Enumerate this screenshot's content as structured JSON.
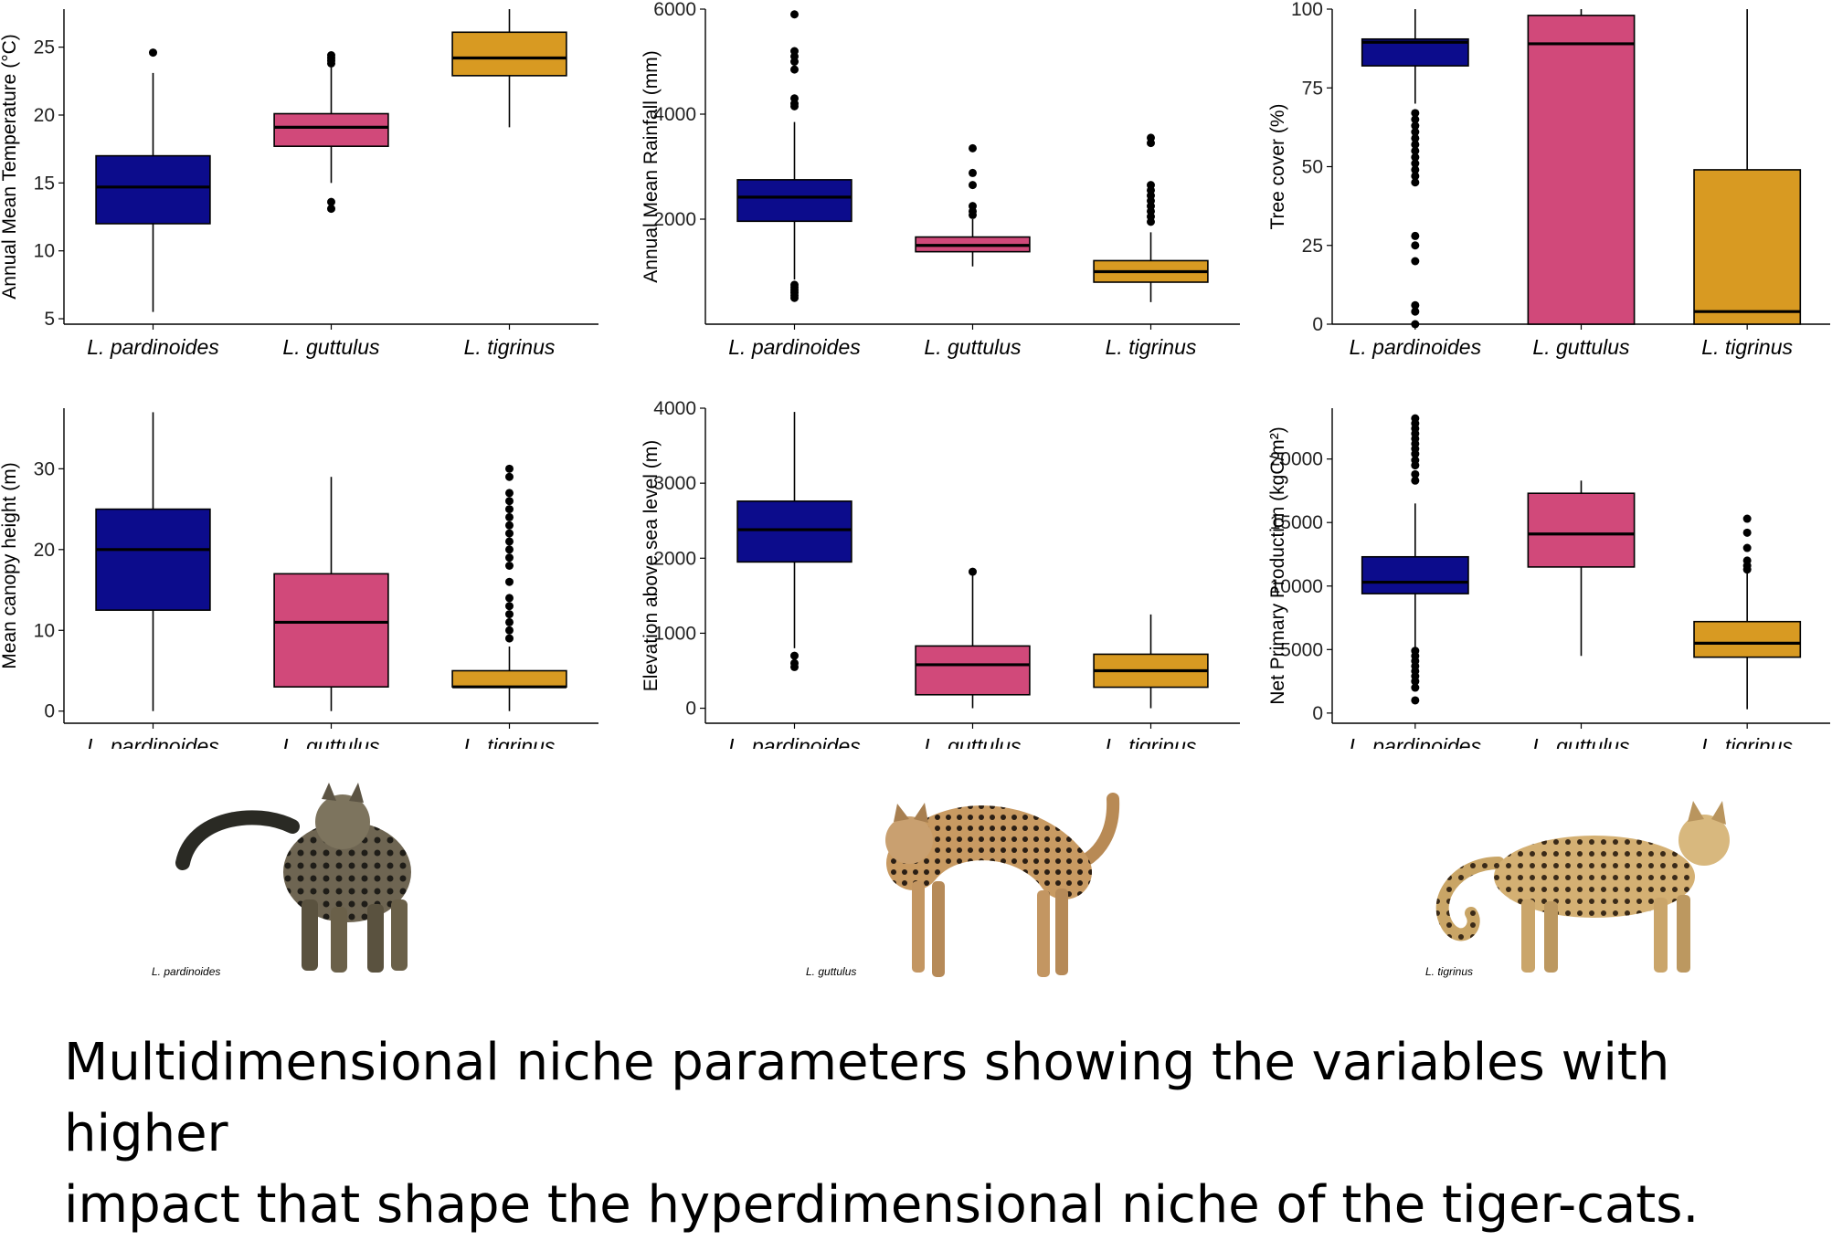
{
  "colors": {
    "L. pardinoides": "#0c0c8c",
    "L. guttulus": "#d1497a",
    "L. tigrinus": "#d89a22"
  },
  "chart_data": [
    {
      "type": "box",
      "categories": [
        "L. pardinoides",
        "L. guttulus",
        "L. tigrinus"
      ],
      "ylabel": "Annual Mean Temperature (°C)",
      "ylim": [
        4.6,
        27.8
      ],
      "yticks": [
        5,
        10,
        15,
        20,
        25
      ],
      "boxes": [
        {
          "min": 5.5,
          "q1": 12.0,
          "median": 14.7,
          "q3": 17.0,
          "max": 23.1,
          "outliers": [
            24.6
          ]
        },
        {
          "min": 15.0,
          "q1": 17.7,
          "median": 19.1,
          "q3": 20.1,
          "max": 23.5,
          "outliers": [
            23.8,
            24.0,
            24.2,
            24.4,
            13.6,
            13.1
          ]
        },
        {
          "min": 19.1,
          "q1": 22.9,
          "median": 24.2,
          "q3": 26.1,
          "max": 27.8,
          "outliers": []
        }
      ]
    },
    {
      "type": "box",
      "categories": [
        "L. pardinoides",
        "L. guttulus",
        "L. tigrinus"
      ],
      "ylabel": "Annual Mean Rainfall (mm)",
      "ylim": [
        0,
        6000
      ],
      "yticks": [
        2000,
        4000,
        6000
      ],
      "boxes": [
        {
          "min": 850,
          "q1": 1960,
          "median": 2420,
          "q3": 2750,
          "max": 3850,
          "outliers": [
            5900,
            5200,
            5100,
            5000,
            4850,
            4300,
            4200,
            4150,
            750,
            700,
            650,
            600,
            550,
            500
          ]
        },
        {
          "min": 1100,
          "q1": 1380,
          "median": 1500,
          "q3": 1660,
          "max": 2000,
          "outliers": [
            3350,
            2880,
            2650,
            2250,
            2150,
            2080
          ]
        },
        {
          "min": 420,
          "q1": 800,
          "median": 1000,
          "q3": 1210,
          "max": 1750,
          "outliers": [
            3550,
            3450,
            2650,
            2550,
            2450,
            2350,
            2250,
            2150,
            2050,
            1950
          ]
        }
      ]
    },
    {
      "type": "box",
      "categories": [
        "L. pardinoides",
        "L. guttulus",
        "L. tigrinus"
      ],
      "ylabel": "Tree cover (%)",
      "ylim": [
        0,
        100
      ],
      "yticks": [
        0,
        25,
        50,
        75,
        100
      ],
      "boxes": [
        {
          "min": 70,
          "q1": 82,
          "median": 89.5,
          "q3": 90.5,
          "max": 100,
          "outliers": [
            67,
            65,
            63,
            61,
            59,
            57,
            55,
            53,
            51,
            49,
            47,
            45,
            28,
            25,
            20,
            6,
            4,
            0
          ]
        },
        {
          "min": 0,
          "q1": 0,
          "median": 89,
          "q3": 98,
          "max": 100,
          "outliers": []
        },
        {
          "min": 0,
          "q1": 0,
          "median": 4,
          "q3": 49,
          "max": 100,
          "outliers": []
        }
      ]
    },
    {
      "type": "box",
      "categories": [
        "L. pardinoides",
        "L. guttulus",
        "L. tigrinus"
      ],
      "ylabel": "Mean canopy height (m)",
      "ylim": [
        -1.5,
        37.5
      ],
      "yticks": [
        0,
        10,
        20,
        30
      ],
      "boxes": [
        {
          "min": 0,
          "q1": 12.5,
          "median": 20,
          "q3": 25,
          "max": 37,
          "outliers": []
        },
        {
          "min": 0,
          "q1": 3,
          "median": 11,
          "q3": 17,
          "max": 29,
          "outliers": []
        },
        {
          "min": 0,
          "q1": 3,
          "median": 3,
          "q3": 5,
          "max": 8,
          "outliers": [
            30,
            29,
            27,
            26,
            25,
            24,
            23,
            22,
            21,
            20,
            19,
            18,
            16,
            14,
            13,
            12,
            11,
            10,
            9
          ]
        }
      ]
    },
    {
      "type": "box",
      "categories": [
        "L. pardinoides",
        "L. guttulus",
        "L. tigrinus"
      ],
      "ylabel": "Elevation above sea level (m)",
      "ylim": [
        -200,
        4000
      ],
      "yticks": [
        0,
        1000,
        2000,
        3000,
        4000
      ],
      "boxes": [
        {
          "min": 800,
          "q1": 1950,
          "median": 2380,
          "q3": 2760,
          "max": 3950,
          "outliers": [
            700,
            600,
            550
          ]
        },
        {
          "min": 0,
          "q1": 180,
          "median": 580,
          "q3": 830,
          "max": 1800,
          "outliers": [
            1820
          ]
        },
        {
          "min": 0,
          "q1": 280,
          "median": 500,
          "q3": 720,
          "max": 1250,
          "outliers": []
        }
      ]
    },
    {
      "type": "box",
      "categories": [
        "L. pardinoides",
        "L. guttulus",
        "L. tigrinus"
      ],
      "ylabel": "Net Primary Production (kgC/m²)",
      "ylim": [
        -800,
        24000
      ],
      "yticks": [
        0,
        5000,
        10000,
        15000,
        20000
      ],
      "boxes": [
        {
          "min": 5000,
          "q1": 9400,
          "median": 10300,
          "q3": 12300,
          "max": 16500,
          "outliers": [
            23200,
            22800,
            22400,
            22000,
            21600,
            21200,
            20800,
            20400,
            19900,
            19500,
            18800,
            18300,
            4900,
            4500,
            4100,
            3700,
            3300,
            2900,
            2500,
            2000,
            1000
          ]
        },
        {
          "min": 4500,
          "q1": 11500,
          "median": 14100,
          "q3": 17300,
          "max": 18300,
          "outliers": []
        },
        {
          "min": 300,
          "q1": 4400,
          "median": 5500,
          "q3": 7200,
          "max": 11000,
          "outliers": [
            15300,
            14200,
            13000,
            12000,
            11600,
            11300
          ]
        }
      ]
    }
  ],
  "photos": [
    {
      "species": "L. pardinoides",
      "label": "L. pardinoides"
    },
    {
      "species": "L. guttulus",
      "label": "L. guttulus"
    },
    {
      "species": "L. tigrinus",
      "label": "L. tigrinus"
    }
  ],
  "caption": {
    "line1": "Multidimensional niche parameters showing the variables with higher",
    "line2": "impact that shape the hyperdimensional niche of the tiger-cats."
  }
}
